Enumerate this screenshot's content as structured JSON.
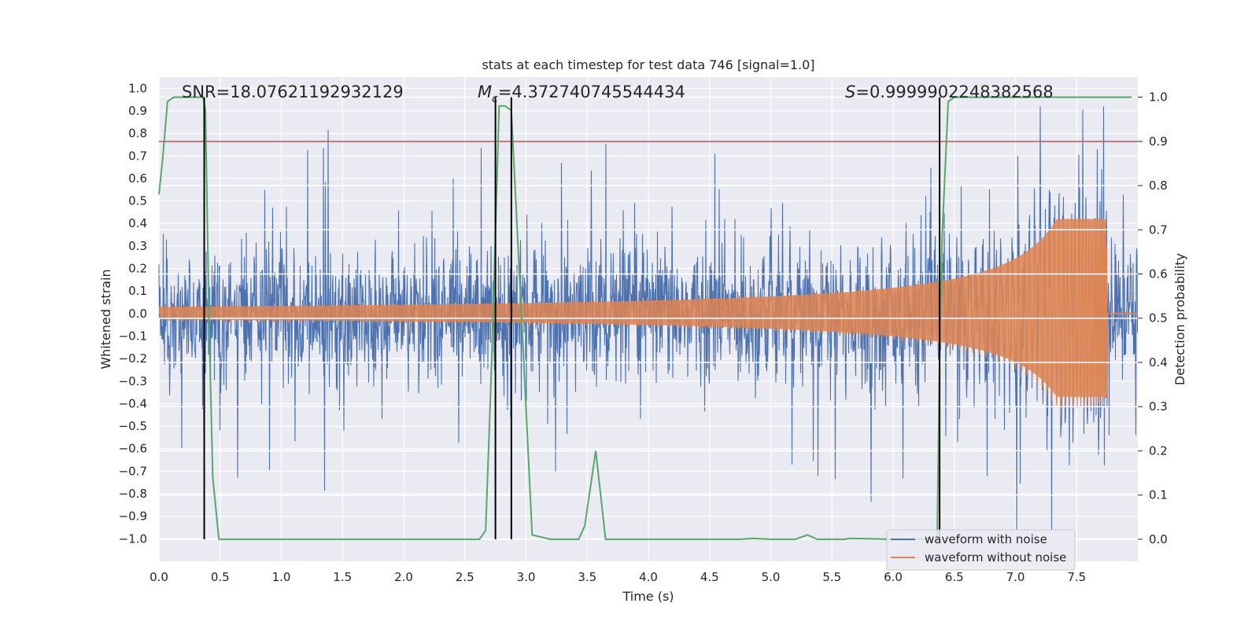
{
  "chart_data": {
    "type": "line",
    "title": "stats at each timestep for test data 746 [signal=1.0]",
    "xlabel": "Time (s)",
    "ylabel_left": "Whitened strain",
    "ylabel_right": "Detection probability",
    "xlim": [
      0.0,
      8.0
    ],
    "ylim_left": [
      -1.1,
      1.05
    ],
    "ylim_right": [
      -0.05,
      1.0455
    ],
    "x_ticks": [
      "0.0",
      "0.5",
      "1.0",
      "1.5",
      "2.0",
      "2.5",
      "3.0",
      "3.5",
      "4.0",
      "4.5",
      "5.0",
      "5.5",
      "6.0",
      "6.5",
      "7.0",
      "7.5"
    ],
    "x_tick_values": [
      0.0,
      0.5,
      1.0,
      1.5,
      2.0,
      2.5,
      3.0,
      3.5,
      4.0,
      4.5,
      5.0,
      5.5,
      6.0,
      6.5,
      7.0,
      7.5
    ],
    "y_left_ticks": [
      "1.0",
      "0.9",
      "0.8",
      "0.7",
      "0.6",
      "0.5",
      "0.4",
      "0.3",
      "0.2",
      "0.1",
      "0.0",
      "−0.1",
      "−0.2",
      "−0.3",
      "−0.4",
      "−0.5",
      "−0.6",
      "−0.7",
      "−0.8",
      "−0.9",
      "−1.0"
    ],
    "y_left_tick_values": [
      1.0,
      0.9,
      0.8,
      0.7,
      0.6,
      0.5,
      0.4,
      0.3,
      0.2,
      0.1,
      0.0,
      -0.1,
      -0.2,
      -0.3,
      -0.4,
      -0.5,
      -0.6,
      -0.7,
      -0.8,
      -0.9,
      -1.0
    ],
    "y_right_ticks": [
      "1.0",
      "0.9",
      "0.8",
      "0.7",
      "0.6",
      "0.5",
      "0.4",
      "0.3",
      "0.2",
      "0.1",
      "0.0"
    ],
    "y_right_tick_values": [
      1.0,
      0.9,
      0.8,
      0.7,
      0.6,
      0.5,
      0.4,
      0.3,
      0.2,
      0.1,
      0.0
    ],
    "annotations": {
      "snr": "SNR=18.07621192932129",
      "mc_symbol": "M",
      "mc_sub": "c",
      "mc_value": "=4.372740745544434",
      "s_symbol": "S",
      "s_value": "=0.9999902248382568"
    },
    "threshold": {
      "right_value": 0.9,
      "color": "#c44e52"
    },
    "vertical_markers_x": [
      0.37,
      2.75,
      2.88,
      6.38
    ],
    "series": [
      {
        "name": "waveform with noise",
        "color": "#4c72b0",
        "style": "noise",
        "envelope_left_units": 0.45,
        "peak_max": 0.92,
        "peak_min": -0.96
      },
      {
        "name": "waveform without noise",
        "color": "#dd8452",
        "style": "chirp",
        "start_amplitude": 0.03,
        "peak_time": 7.75,
        "peak_amplitude": 0.42,
        "after_merger_value": 0.0
      },
      {
        "name": "detection probability",
        "color": "#55a868",
        "axis": "right",
        "x": [
          0.0,
          0.03,
          0.07,
          0.12,
          0.2,
          0.3,
          0.36,
          0.38,
          0.41,
          0.44,
          0.49,
          0.55,
          1.0,
          1.5,
          2.0,
          2.5,
          2.62,
          2.67,
          2.72,
          2.78,
          2.83,
          2.88,
          2.93,
          2.98,
          3.05,
          3.2,
          3.43,
          3.48,
          3.57,
          3.65,
          3.75,
          4.0,
          4.5,
          4.75,
          4.85,
          5.0,
          5.2,
          5.3,
          5.38,
          5.6,
          5.65,
          6.0,
          6.3,
          6.36,
          6.38,
          6.4,
          6.45,
          6.5,
          7.0,
          7.5,
          7.95
        ],
        "y": [
          0.78,
          0.86,
          0.99,
          1.0,
          1.0,
          1.0,
          1.0,
          0.97,
          0.48,
          0.14,
          0.0,
          0.0,
          0.0,
          0.0,
          0.0,
          0.0,
          0.0,
          0.02,
          0.41,
          0.98,
          0.98,
          0.97,
          0.69,
          0.41,
          0.01,
          0.0,
          0.0,
          0.03,
          0.2,
          0.0,
          0.0,
          0.0,
          0.0,
          0.0,
          0.002,
          0.0,
          0.0,
          0.01,
          0.0,
          0.0,
          0.002,
          0.0,
          0.0,
          0.0,
          0.42,
          0.68,
          0.99,
          1.0,
          1.0,
          1.0,
          1.0
        ]
      }
    ],
    "legend": {
      "position": "lower-right",
      "entries": [
        {
          "label": "waveform with noise",
          "color": "#4c72b0"
        },
        {
          "label": "waveform without noise",
          "color": "#dd8452"
        }
      ]
    }
  }
}
